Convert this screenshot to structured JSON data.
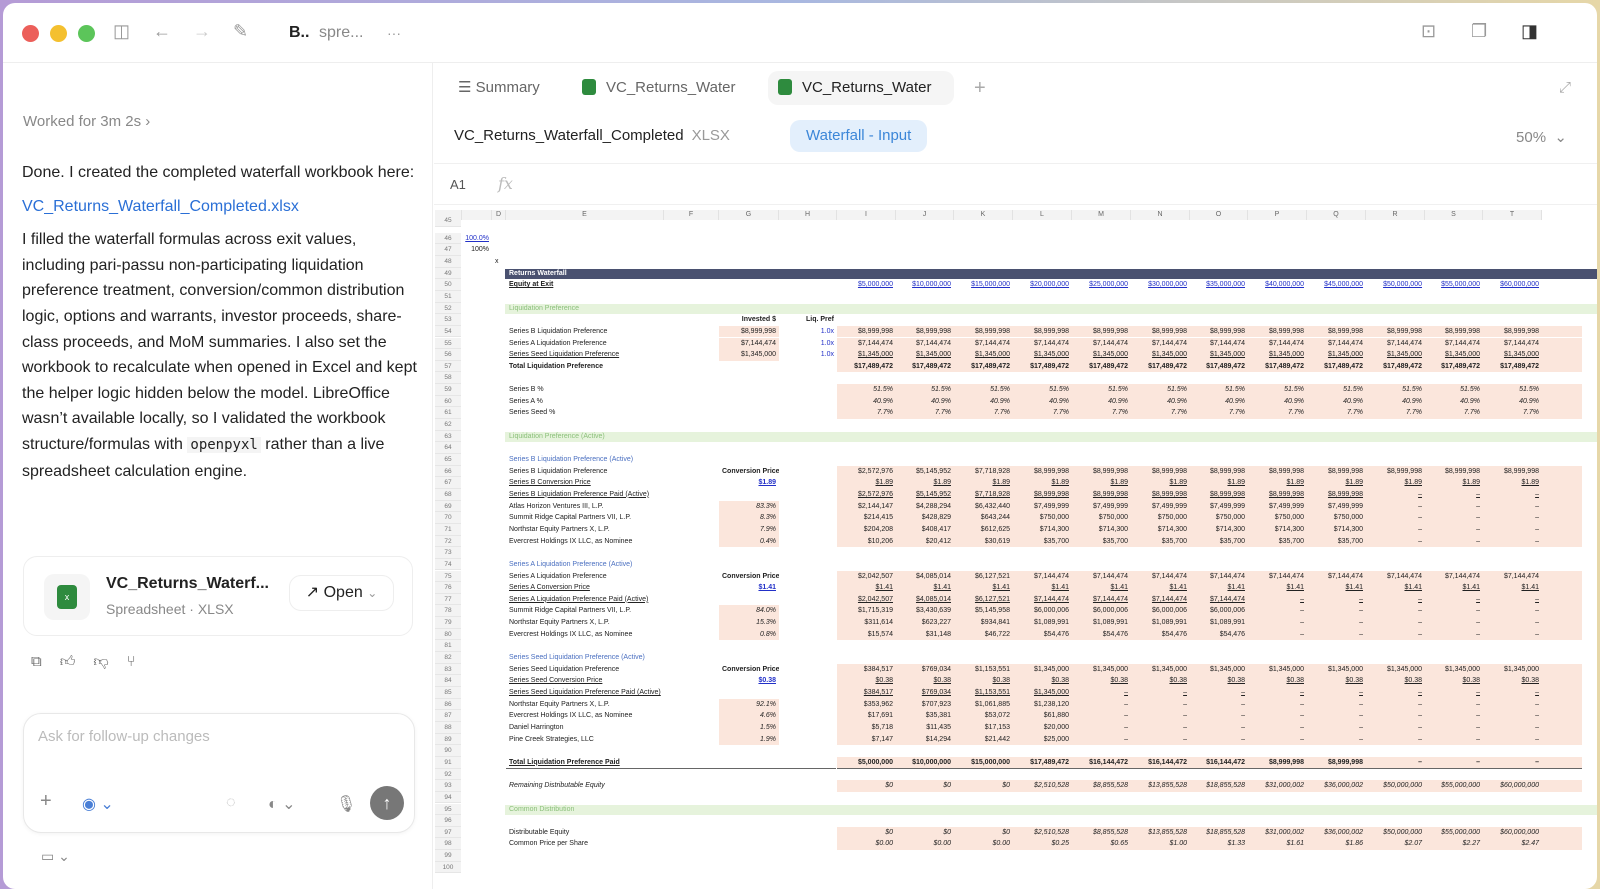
{
  "window": {
    "title_bold": "B..",
    "title_rest": "spre...",
    "more": "···"
  },
  "chat": {
    "worked": "Worked for 3m 2s",
    "para1": "Done. I created the completed waterfall workbook here:",
    "link": "VC_Returns_Waterfall_Completed.xlsx",
    "para2a": "I filled the waterfall formulas across exit values, including pari-passu non-participating liquidation preference treatment, conversion/common distribution logic, options and warrants, investor proceeds, share-class proceeds, and MoM summaries. I also set the workbook to recalculate when opened in Excel and kept the helper logic hidden below the model. LibreOffice wasn’t available locally, so I validated the workbook structure/formulas with ",
    "para2code": "openpyxl",
    "para2b": " rather than a live spreadsheet calculation engine.",
    "file_card": {
      "name": "VC_Returns_Waterf...",
      "sub": "Spreadsheet · XLSX",
      "open_label": "Open"
    },
    "composer_placeholder": "Ask for follow-up changes"
  },
  "viewer": {
    "tabs": [
      {
        "label": "Summary"
      },
      {
        "label": "VC_Returns_Water"
      },
      {
        "label": "VC_Returns_Water"
      }
    ],
    "file_name": "VC_Returns_Waterfall_Completed",
    "file_ext": "XLSX",
    "sheet": "Waterfall - Input",
    "zoom": "50%",
    "cell_ref": "A1",
    "fx": "fx"
  },
  "sheet": {
    "columns": [
      "D",
      "E",
      "F",
      "G",
      "H",
      "I",
      "J",
      "K",
      "L",
      "M",
      "N",
      "O",
      "P",
      "Q",
      "R",
      "S",
      "T"
    ],
    "rows": [
      {
        "n": 45
      },
      {
        "n": 46,
        "c": "100.0%"
      },
      {
        "n": 47,
        "c": "100%"
      },
      {
        "n": 48,
        "d": "x"
      },
      {
        "n": 49,
        "label": "Returns Waterfall",
        "t": "dark"
      },
      {
        "n": 50,
        "label": "Equity at Exit",
        "t": "equity",
        "v": [
          "$5,000,000",
          "$10,000,000",
          "$15,000,000",
          "$20,000,000",
          "$25,000,000",
          "$30,000,000",
          "$35,000,000",
          "$40,000,000",
          "$45,000,000",
          "$50,000,000",
          "$55,000,000",
          "$60,000,000"
        ]
      },
      {
        "n": 51
      },
      {
        "n": 52,
        "label": "Liquidation Preference",
        "t": "sec"
      },
      {
        "n": 53,
        "g": "Invested $",
        "h": "Liq. Pref",
        "t": "hdr"
      },
      {
        "n": 54,
        "label": "Series B Liquidation Preference",
        "g": "$8,999,998",
        "h": "1.0x",
        "v": [
          "$8,999,998",
          "$8,999,998",
          "$8,999,998",
          "$8,999,998",
          "$8,999,998",
          "$8,999,998",
          "$8,999,998",
          "$8,999,998",
          "$8,999,998",
          "$8,999,998",
          "$8,999,998",
          "$8,999,998"
        ]
      },
      {
        "n": 55,
        "label": "Series A Liquidation Preference",
        "g": "$7,144,474",
        "h": "1.0x",
        "v": [
          "$7,144,474",
          "$7,144,474",
          "$7,144,474",
          "$7,144,474",
          "$7,144,474",
          "$7,144,474",
          "$7,144,474",
          "$7,144,474",
          "$7,144,474",
          "$7,144,474",
          "$7,144,474",
          "$7,144,474"
        ]
      },
      {
        "n": 56,
        "label": "Series Seed Liquidation Preference",
        "g": "$1,345,000",
        "h": "1.0x",
        "t": "ul",
        "v": [
          "$1,345,000",
          "$1,345,000",
          "$1,345,000",
          "$1,345,000",
          "$1,345,000",
          "$1,345,000",
          "$1,345,000",
          "$1,345,000",
          "$1,345,000",
          "$1,345,000",
          "$1,345,000",
          "$1,345,000"
        ]
      },
      {
        "n": 57,
        "label": "Total Liquidation Preference",
        "t": "bold",
        "v": [
          "$17,489,472",
          "$17,489,472",
          "$17,489,472",
          "$17,489,472",
          "$17,489,472",
          "$17,489,472",
          "$17,489,472",
          "$17,489,472",
          "$17,489,472",
          "$17,489,472",
          "$17,489,472",
          "$17,489,472"
        ]
      },
      {
        "n": 58
      },
      {
        "n": 59,
        "label": "Series B %",
        "t": "pct",
        "v": [
          "51.5%",
          "51.5%",
          "51.5%",
          "51.5%",
          "51.5%",
          "51.5%",
          "51.5%",
          "51.5%",
          "51.5%",
          "51.5%",
          "51.5%",
          "51.5%"
        ]
      },
      {
        "n": 60,
        "label": "Series A %",
        "t": "pct",
        "v": [
          "40.9%",
          "40.9%",
          "40.9%",
          "40.9%",
          "40.9%",
          "40.9%",
          "40.9%",
          "40.9%",
          "40.9%",
          "40.9%",
          "40.9%",
          "40.9%"
        ]
      },
      {
        "n": 61,
        "label": "Series Seed %",
        "t": "pct",
        "v": [
          "7.7%",
          "7.7%",
          "7.7%",
          "7.7%",
          "7.7%",
          "7.7%",
          "7.7%",
          "7.7%",
          "7.7%",
          "7.7%",
          "7.7%",
          "7.7%"
        ]
      },
      {
        "n": 62
      },
      {
        "n": 63,
        "label": "Liquidation Preference (Active)",
        "t": "sec"
      },
      {
        "n": 64
      },
      {
        "n": 65,
        "label": "Series B Liquidation Preference (Active)",
        "t": "sub"
      },
      {
        "n": 66,
        "label": "Series B Liquidation Preference",
        "g": "Conversion Price",
        "t": "conv",
        "v": [
          "$2,572,976",
          "$5,145,952",
          "$7,718,928",
          "$8,999,998",
          "$8,999,998",
          "$8,999,998",
          "$8,999,998",
          "$8,999,998",
          "$8,999,998",
          "$8,999,998",
          "$8,999,998",
          "$8,999,998"
        ]
      },
      {
        "n": 67,
        "label": "Series B Conversion Price",
        "g": "$1.89",
        "t": "cp",
        "v": [
          "$1.89",
          "$1.89",
          "$1.89",
          "$1.89",
          "$1.89",
          "$1.89",
          "$1.89",
          "$1.89",
          "$1.89",
          "$1.89",
          "$1.89",
          "$1.89"
        ]
      },
      {
        "n": 68,
        "label": "Series B Liquidation Preference Paid (Active)",
        "t": "ul",
        "v": [
          "$2,572,976",
          "$5,145,952",
          "$7,718,928",
          "$8,999,998",
          "$8,999,998",
          "$8,999,998",
          "$8,999,998",
          "$8,999,998",
          "$8,999,998",
          "–",
          "–",
          "–"
        ]
      },
      {
        "n": 69,
        "label": "Atlas Horizon Ventures III, L.P.",
        "g": "83.3%",
        "t": "inv",
        "v": [
          "$2,144,147",
          "$4,288,294",
          "$6,432,440",
          "$7,499,999",
          "$7,499,999",
          "$7,499,999",
          "$7,499,999",
          "$7,499,999",
          "$7,499,999",
          "–",
          "–",
          "–"
        ]
      },
      {
        "n": 70,
        "label": "Summit Ridge Capital Partners VII, L.P.",
        "g": "8.3%",
        "t": "inv",
        "v": [
          "$214,415",
          "$428,829",
          "$643,244",
          "$750,000",
          "$750,000",
          "$750,000",
          "$750,000",
          "$750,000",
          "$750,000",
          "–",
          "–",
          "–"
        ]
      },
      {
        "n": 71,
        "label": "Northstar Equity Partners X, L.P.",
        "g": "7.9%",
        "t": "inv",
        "v": [
          "$204,208",
          "$408,417",
          "$612,625",
          "$714,300",
          "$714,300",
          "$714,300",
          "$714,300",
          "$714,300",
          "$714,300",
          "–",
          "–",
          "–"
        ]
      },
      {
        "n": 72,
        "label": "Evercrest Holdings IX LLC, as Nominee",
        "g": "0.4%",
        "t": "inv",
        "v": [
          "$10,206",
          "$20,412",
          "$30,619",
          "$35,700",
          "$35,700",
          "$35,700",
          "$35,700",
          "$35,700",
          "$35,700",
          "–",
          "–",
          "–"
        ]
      },
      {
        "n": 73
      },
      {
        "n": 74,
        "label": "Series A Liquidation Preference (Active)",
        "t": "sub"
      },
      {
        "n": 75,
        "label": "Series A Liquidation Preference",
        "g": "Conversion Price",
        "t": "conv",
        "v": [
          "$2,042,507",
          "$4,085,014",
          "$6,127,521",
          "$7,144,474",
          "$7,144,474",
          "$7,144,474",
          "$7,144,474",
          "$7,144,474",
          "$7,144,474",
          "$7,144,474",
          "$7,144,474",
          "$7,144,474"
        ]
      },
      {
        "n": 76,
        "label": "Series A Conversion Price",
        "g": "$1.41",
        "t": "cp",
        "v": [
          "$1.41",
          "$1.41",
          "$1.41",
          "$1.41",
          "$1.41",
          "$1.41",
          "$1.41",
          "$1.41",
          "$1.41",
          "$1.41",
          "$1.41",
          "$1.41"
        ]
      },
      {
        "n": 77,
        "label": "Series A Liquidation Preference Paid (Active)",
        "t": "ul",
        "v": [
          "$2,042,507",
          "$4,085,014",
          "$6,127,521",
          "$7,144,474",
          "$7,144,474",
          "$7,144,474",
          "$7,144,474",
          "–",
          "–",
          "–",
          "–",
          "–"
        ]
      },
      {
        "n": 78,
        "label": "Summit Ridge Capital Partners VII, L.P.",
        "g": "84.0%",
        "t": "inv",
        "v": [
          "$1,715,319",
          "$3,430,639",
          "$5,145,958",
          "$6,000,006",
          "$6,000,006",
          "$6,000,006",
          "$6,000,006",
          "–",
          "–",
          "–",
          "–",
          "–"
        ]
      },
      {
        "n": 79,
        "label": "Northstar Equity Partners X, L.P.",
        "g": "15.3%",
        "t": "inv",
        "v": [
          "$311,614",
          "$623,227",
          "$934,841",
          "$1,089,991",
          "$1,089,991",
          "$1,089,991",
          "$1,089,991",
          "–",
          "–",
          "–",
          "–",
          "–"
        ]
      },
      {
        "n": 80,
        "label": "Evercrest Holdings IX LLC, as Nominee",
        "g": "0.8%",
        "t": "inv",
        "v": [
          "$15,574",
          "$31,148",
          "$46,722",
          "$54,476",
          "$54,476",
          "$54,476",
          "$54,476",
          "–",
          "–",
          "–",
          "–",
          "–"
        ]
      },
      {
        "n": 81
      },
      {
        "n": 82,
        "label": "Series Seed Liquidation Preference (Active)",
        "t": "sub"
      },
      {
        "n": 83,
        "label": "Series Seed Liquidation Preference",
        "g": "Conversion Price",
        "t": "conv",
        "v": [
          "$384,517",
          "$769,034",
          "$1,153,551",
          "$1,345,000",
          "$1,345,000",
          "$1,345,000",
          "$1,345,000",
          "$1,345,000",
          "$1,345,000",
          "$1,345,000",
          "$1,345,000",
          "$1,345,000"
        ]
      },
      {
        "n": 84,
        "label": "Series Seed Conversion Price",
        "g": "$0.38",
        "t": "cp",
        "v": [
          "$0.38",
          "$0.38",
          "$0.38",
          "$0.38",
          "$0.38",
          "$0.38",
          "$0.38",
          "$0.38",
          "$0.38",
          "$0.38",
          "$0.38",
          "$0.38"
        ]
      },
      {
        "n": 85,
        "label": "Series Seed Liquidation Preference Paid (Active)",
        "t": "ul",
        "v": [
          "$384,517",
          "$769,034",
          "$1,153,551",
          "$1,345,000",
          "–",
          "–",
          "–",
          "–",
          "–",
          "–",
          "–",
          "–"
        ]
      },
      {
        "n": 86,
        "label": "Northstar Equity Partners X, L.P.",
        "g": "92.1%",
        "t": "inv",
        "v": [
          "$353,962",
          "$707,923",
          "$1,061,885",
          "$1,238,120",
          "–",
          "–",
          "–",
          "–",
          "–",
          "–",
          "–",
          "–"
        ]
      },
      {
        "n": 87,
        "label": "Evercrest Holdings IX LLC, as Nominee",
        "g": "4.6%",
        "t": "inv",
        "v": [
          "$17,691",
          "$35,381",
          "$53,072",
          "$61,880",
          "–",
          "–",
          "–",
          "–",
          "–",
          "–",
          "–",
          "–"
        ]
      },
      {
        "n": 88,
        "label": "Daniel Harrington",
        "g": "1.5%",
        "t": "inv",
        "v": [
          "$5,718",
          "$11,435",
          "$17,153",
          "$20,000",
          "–",
          "–",
          "–",
          "–",
          "–",
          "–",
          "–",
          "–"
        ]
      },
      {
        "n": 89,
        "label": "Pine Creek Strategies, LLC",
        "g": "1.9%",
        "t": "inv",
        "v": [
          "$7,147",
          "$14,294",
          "$21,442",
          "$25,000",
          "–",
          "–",
          "–",
          "–",
          "–",
          "–",
          "–",
          "–"
        ]
      },
      {
        "n": 90
      },
      {
        "n": 91,
        "label": "Total Liquidation Preference Paid",
        "t": "total",
        "v": [
          "$5,000,000",
          "$10,000,000",
          "$15,000,000",
          "$17,489,472",
          "$16,144,472",
          "$16,144,472",
          "$16,144,472",
          "$8,999,998",
          "$8,999,998",
          "–",
          "–",
          "–"
        ]
      },
      {
        "n": 92
      },
      {
        "n": 93,
        "label": "Remaining Distributable Equity",
        "t": "ital",
        "v": [
          "$0",
          "$0",
          "$0",
          "$2,510,528",
          "$8,855,528",
          "$13,855,528",
          "$18,855,528",
          "$31,000,002",
          "$36,000,002",
          "$50,000,000",
          "$55,000,000",
          "$60,000,000"
        ]
      },
      {
        "n": 94
      },
      {
        "n": 95,
        "label": "Common Distribution",
        "t": "sec"
      },
      {
        "n": 96
      },
      {
        "n": 97,
        "label": "Distributable Equity",
        "t": "ivals",
        "v": [
          "$0",
          "$0",
          "$0",
          "$2,510,528",
          "$8,855,528",
          "$13,855,528",
          "$18,855,528",
          "$31,000,002",
          "$36,000,002",
          "$50,000,000",
          "$55,000,000",
          "$60,000,000"
        ]
      },
      {
        "n": 98,
        "label": "Common Price per Share",
        "t": "ivals",
        "v": [
          "$0.00",
          "$0.00",
          "$0.00",
          "$0.25",
          "$0.65",
          "$1.00",
          "$1.33",
          "$1.61",
          "$1.86",
          "$2.07",
          "$2.27",
          "$2.47"
        ]
      },
      {
        "n": 99
      },
      {
        "n": 100
      }
    ]
  },
  "colors": {
    "accent": "#2a6fd6",
    "pink_fill": "#fbe6dc",
    "section_band": "#e6f3dc",
    "header_band": "#4a5170"
  }
}
